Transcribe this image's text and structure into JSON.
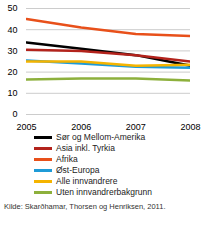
{
  "chart_data": {
    "type": "line",
    "x": [
      2005,
      2006,
      2007,
      2008
    ],
    "xlim": [
      2005,
      2008
    ],
    "xticks": [
      2005,
      2006,
      2007,
      2008
    ],
    "ylim": [
      0,
      50
    ],
    "yticks": [
      0,
      10,
      20,
      30,
      40,
      50
    ],
    "grid": true,
    "legend": "bottom",
    "series": [
      {
        "name": "Sør og Mellom-Amerika",
        "color": "#000000",
        "values": [
          34,
          31,
          28,
          23
        ]
      },
      {
        "name": "Asia inkl. Tyrkia",
        "color": "#b3231c",
        "values": [
          30.5,
          30,
          28,
          25
        ]
      },
      {
        "name": "Afrika",
        "color": "#e8501a",
        "values": [
          45,
          41,
          38,
          37
        ]
      },
      {
        "name": "Øst-Europa",
        "color": "#1f9bd7",
        "values": [
          25.5,
          24,
          22.5,
          22
        ]
      },
      {
        "name": "Alle innvandrere",
        "color": "#f5b400",
        "values": [
          25,
          25,
          23,
          23.5
        ]
      },
      {
        "name": "Uten innvandrerbakgrunn",
        "color": "#8db03c",
        "values": [
          16.5,
          17,
          17,
          16
        ]
      }
    ],
    "caption": "Kilde: Skarðhamar, Thorsen og Henriksen, 2011."
  }
}
